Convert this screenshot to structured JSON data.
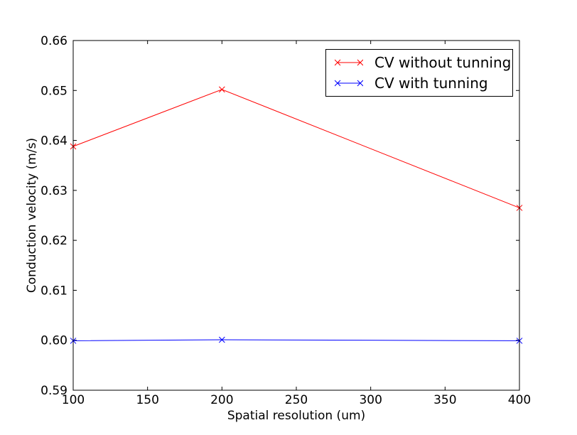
{
  "figure": {
    "background_color": "#ffffff",
    "axis_color": "#000000"
  },
  "chart_data": {
    "type": "line",
    "title": "",
    "xlabel": "Spatial resolution (um)",
    "ylabel": "Conduction velocity (m/s)",
    "x": [
      100,
      200,
      400
    ],
    "series": [
      {
        "name": "CV without tunning",
        "color": "#ff0000",
        "marker": "x",
        "values": [
          0.6388,
          0.6502,
          0.6265
        ]
      },
      {
        "name": "CV with tunning",
        "color": "#0000ff",
        "marker": "x",
        "values": [
          0.5999,
          0.6001,
          0.5999
        ]
      }
    ],
    "xlim": [
      100,
      400
    ],
    "ylim": [
      0.59,
      0.66
    ],
    "xticks": [
      100,
      150,
      200,
      250,
      300,
      350,
      400
    ],
    "yticks": [
      0.59,
      0.6,
      0.61,
      0.62,
      0.63,
      0.64,
      0.65,
      0.66
    ],
    "ytick_decimals": 2,
    "grid": false,
    "tick_direction": "in",
    "legend_position": "upper right"
  }
}
